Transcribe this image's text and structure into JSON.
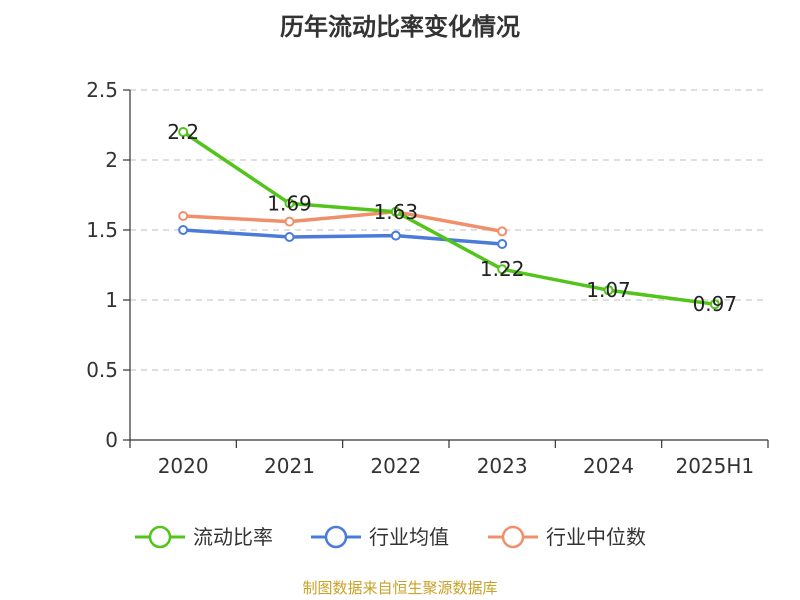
{
  "chart_data": {
    "type": "line",
    "title": "历年流动比率变化情况",
    "categories": [
      "2020",
      "2021",
      "2022",
      "2023",
      "2024",
      "2025H1"
    ],
    "ylim": [
      0,
      2.5
    ],
    "yticks": [
      "0",
      "0.5",
      "1",
      "1.5",
      "2",
      "2.5"
    ],
    "grid": true,
    "legend_position": "bottom",
    "series": [
      {
        "name": "流动比率",
        "color": "#52c41a",
        "values": [
          2.2,
          1.69,
          1.63,
          1.22,
          1.07,
          0.97
        ],
        "labels": [
          "2.2",
          "1.69",
          "1.63",
          "1.22",
          "1.07",
          "0.97"
        ]
      },
      {
        "name": "行业均值",
        "color": "#4a7bd8",
        "values": [
          1.5,
          1.45,
          1.46,
          1.4,
          null,
          null
        ]
      },
      {
        "name": "行业中位数",
        "color": "#f0906a",
        "values": [
          1.6,
          1.56,
          1.63,
          1.49,
          null,
          null
        ]
      }
    ]
  },
  "source": "制图数据来自恒生聚源数据库"
}
